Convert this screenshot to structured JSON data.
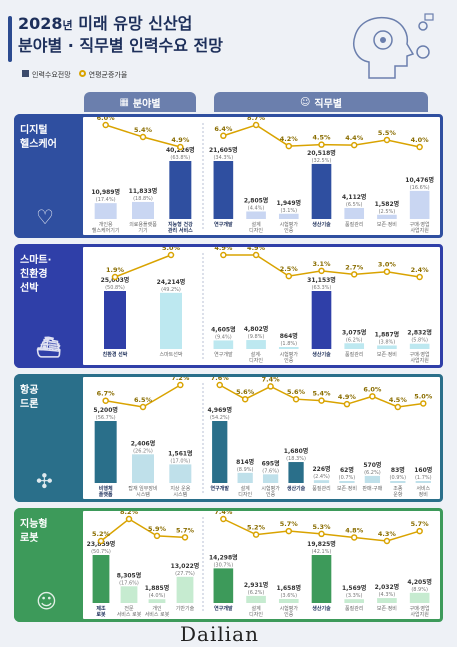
{
  "title": {
    "year": "2028",
    "unit": "년",
    "line1": " 미래 유망 신산업",
    "line2": "분야별 · 직무별 인력수요 전망"
  },
  "legend": {
    "demand": "인력수요전망",
    "growth": "연평균증가율"
  },
  "tabs": {
    "field": "분야별",
    "job": "직무별"
  },
  "logo": "Dailian",
  "colors": {
    "gold": "#d9a300"
  },
  "chart_data": [
    {
      "type": "bar",
      "name": "디지털 헬스케어",
      "label_lines": [
        "디지털",
        "헬스케어"
      ],
      "color": "#2f4fa0",
      "light": "#c9d6f2",
      "field": {
        "categories": [
          "개인용 헬스케어기기",
          "의료용 플랫폼 기기",
          "지능형 건강 관리 서비스"
        ],
        "cat_lines": [
          [
            "개인용",
            "헬스케어기기"
          ],
          [
            "의료용플랫폼",
            "기기"
          ],
          [
            "지능형 건강",
            "관리 서비스"
          ]
        ],
        "values": [
          10989,
          11833,
          40226
        ],
        "value_labels": [
          "10,989명",
          "11,833명",
          "40,226명"
        ],
        "share_labels": [
          "(17.4%)",
          "(18.8%)",
          "(63.8%)"
        ],
        "growth": [
          6.0,
          5.4,
          4.9
        ],
        "growth_labels": [
          "6.0%",
          "5.4%",
          "4.9%"
        ],
        "highlight": 2
      },
      "job": {
        "categories": [
          "연구개발",
          "설계·디자인",
          "시험평가·인증",
          "생산기술",
          "품질관리",
          "보존·정비",
          "구매·영업 사업지원"
        ],
        "cat_lines": [
          [
            "연구개발"
          ],
          [
            "설계",
            "디자인"
          ],
          [
            "시험평가",
            "인증"
          ],
          [
            "생산기술"
          ],
          [
            "품질관리"
          ],
          [
            "보존·정비"
          ],
          [
            "구매·영업",
            "사업지원"
          ]
        ],
        "values": [
          21605,
          2805,
          1949,
          20518,
          4112,
          1582,
          10476
        ],
        "value_labels": [
          "21,605명",
          "2,805명",
          "1,949명",
          "20,518명",
          "4,112명",
          "1,582명",
          "10,476명"
        ],
        "share_labels": [
          "(34.3%)",
          "(4.4%)",
          "(3.1%)",
          "(32.5%)",
          "(6.5%)",
          "(2.5%)",
          "(16.6%)"
        ],
        "growth": [
          6.4,
          8.7,
          4.2,
          4.5,
          4.4,
          5.5,
          4.0
        ],
        "growth_labels": [
          "6.4%",
          "8.7%",
          "4.2%",
          "4.5%",
          "4.4%",
          "5.5%",
          "4.0%"
        ],
        "highlight": [
          0,
          3
        ]
      }
    },
    {
      "type": "bar",
      "name": "스마트 친환경 선박",
      "label_lines": [
        "스마트·",
        "친환경",
        "선박"
      ],
      "color": "#2f3fa8",
      "light": "#bde8f0",
      "field": {
        "categories": [
          "친환경 선박",
          "스마트 선박"
        ],
        "cat_lines": [
          [
            "친환경 선박"
          ],
          [
            "스마트선박"
          ]
        ],
        "values": [
          25003,
          24214
        ],
        "value_labels": [
          "25,003명",
          "24,214명"
        ],
        "share_labels": [
          "(50.8%)",
          "(49.2%)"
        ],
        "growth": [
          1.9,
          5.0
        ],
        "growth_labels": [
          "1.9%",
          "5.0%"
        ],
        "highlight": 0
      },
      "job": {
        "categories": [
          "연구개발",
          "설계·디자인",
          "시험평가·인증",
          "생산기술",
          "품질관리",
          "보존·정비",
          "구매·영업 사업지원"
        ],
        "cat_lines": [
          [
            "연구개발"
          ],
          [
            "설계·",
            "디자인"
          ],
          [
            "시험평가",
            "인증"
          ],
          [
            "생산기술"
          ],
          [
            "품질관리"
          ],
          [
            "보존·정비"
          ],
          [
            "구매·영업",
            "사업지원"
          ]
        ],
        "values": [
          4605,
          4802,
          864,
          31153,
          3075,
          1887,
          2832
        ],
        "value_labels": [
          "4,605명",
          "4,802명",
          "864명",
          "31,153명",
          "3,075명",
          "1,887명",
          "2,832명"
        ],
        "share_labels": [
          "(9.4%)",
          "(9.8%)",
          "(1.8%)",
          "(63.3%)",
          "(6.2%)",
          "(3.8%)",
          "(5.8%)"
        ],
        "growth": [
          4.9,
          4.9,
          2.5,
          3.1,
          2.7,
          3.0,
          2.4
        ],
        "growth_labels": [
          "4.9%",
          "4.9%",
          "2.5%",
          "3.1%",
          "2.7%",
          "3.0%",
          "2.4%"
        ],
        "highlight": [
          3
        ]
      }
    },
    {
      "type": "bar",
      "name": "항공 드론",
      "label_lines": [
        "항공",
        "드론"
      ],
      "color": "#2a6f8a",
      "light": "#bfe0ea",
      "field": {
        "categories": [
          "비행체 플랫폼",
          "탑재 임무장비 시스템",
          "지상 운용 시스템"
        ],
        "cat_lines": [
          [
            "비행체",
            "플랫폼"
          ],
          [
            "탑재 임무장비",
            "시스템"
          ],
          [
            "지상 운용",
            "시스템"
          ]
        ],
        "values": [
          5200,
          2406,
          1561
        ],
        "value_labels": [
          "5,200명",
          "2,406명",
          "1,561명"
        ],
        "share_labels": [
          "(56.7%)",
          "(26.2%)",
          "(17.0%)"
        ],
        "growth": [
          6.7,
          6.5,
          7.2
        ],
        "growth_labels": [
          "6.7%",
          "6.5%",
          "7.2%"
        ],
        "highlight": 0
      },
      "job": {
        "categories": [
          "연구개발",
          "설계·디자인",
          "시험평가·인증",
          "생산기술",
          "품질관리",
          "보존·정비",
          "판매·구매",
          "조종·운항",
          "서비스·정비"
        ],
        "cat_lines": [
          [
            "연구개발"
          ],
          [
            "설계",
            "디자인"
          ],
          [
            "시험평가",
            "인증"
          ],
          [
            "생산기술"
          ],
          [
            "품질관리"
          ],
          [
            "보존·정비"
          ],
          [
            "판매·구매"
          ],
          [
            "조종",
            "운항"
          ],
          [
            "서비스",
            "정비"
          ]
        ],
        "values": [
          4969,
          814,
          695,
          1680,
          226,
          62,
          570,
          83,
          160
        ],
        "value_labels": [
          "4,969명",
          "814명",
          "695명",
          "1,680명",
          "226명",
          "62명",
          "570명",
          "83명",
          "160명"
        ],
        "share_labels": [
          "(54.2%)",
          "(8.9%)",
          "(7.6%)",
          "(18.3%)",
          "(2.4%)",
          "(0.7%)",
          "(6.2%)",
          "(0.9%)",
          "(1.7%)"
        ],
        "growth": [
          7.6,
          5.6,
          7.4,
          5.6,
          5.4,
          4.9,
          6.0,
          4.5,
          5.0
        ],
        "growth_labels": [
          "7.6%",
          "5.6%",
          "7.4%",
          "5.6%",
          "5.4%",
          "4.9%",
          "6.0%",
          "4.5%",
          "5.0%"
        ],
        "highlight": [
          0,
          3
        ]
      }
    },
    {
      "type": "bar",
      "name": "지능형 로봇",
      "label_lines": [
        "지능형",
        "로봇"
      ],
      "color": "#3d9a5a",
      "light": "#c6ebd0",
      "field": {
        "categories": [
          "제조 로봇",
          "전문 서비스 로봇",
          "개인 서비스 로봇",
          "기반기술"
        ],
        "cat_lines": [
          [
            "제조",
            "로봇"
          ],
          [
            "전문",
            "서비스 로봇"
          ],
          [
            "개인",
            "서비스 로봇"
          ],
          [
            "기반기술"
          ]
        ],
        "values": [
          23859,
          8305,
          1885,
          13022
        ],
        "value_labels": [
          "23,859명",
          "8,305명",
          "1,885명",
          "13,022명"
        ],
        "share_labels": [
          "(50.7%)",
          "(17.6%)",
          "(4.0%)",
          "(27.7%)"
        ],
        "growth": [
          5.2,
          8.2,
          5.9,
          5.7
        ],
        "growth_labels": [
          "5.2%",
          "8.2%",
          "5.9%",
          "5.7%"
        ],
        "highlight": 0
      },
      "job": {
        "categories": [
          "연구개발",
          "설계·디자인",
          "시험평가·인증",
          "생산기술",
          "품질관리",
          "보존·정비",
          "구매·영업 사업지원"
        ],
        "cat_lines": [
          [
            "연구개발"
          ],
          [
            "설계",
            "디자인"
          ],
          [
            "시험평가",
            "인증"
          ],
          [
            "생산기술"
          ],
          [
            "품질관리"
          ],
          [
            "보존·정비"
          ],
          [
            "구매·영업",
            "사업지원"
          ]
        ],
        "values": [
          14298,
          2931,
          1658,
          19825,
          1569,
          2032,
          4205
        ],
        "value_labels": [
          "14,298명",
          "2,931명",
          "1,658명",
          "19,825명",
          "1,569명",
          "2,032명",
          "4,205명"
        ],
        "share_labels": [
          "(30.7%)",
          "(6.2%)",
          "(3.6%)",
          "(42.1%)",
          "(3.3%)",
          "(4.3%)",
          "(8.9%)"
        ],
        "growth": [
          7.4,
          5.2,
          5.7,
          5.3,
          4.8,
          4.3,
          5.7
        ],
        "growth_labels": [
          "7.4%",
          "5.2%",
          "5.7%",
          "5.3%",
          "4.8%",
          "4.3%",
          "5.7%"
        ],
        "highlight": [
          0,
          3
        ]
      }
    }
  ]
}
